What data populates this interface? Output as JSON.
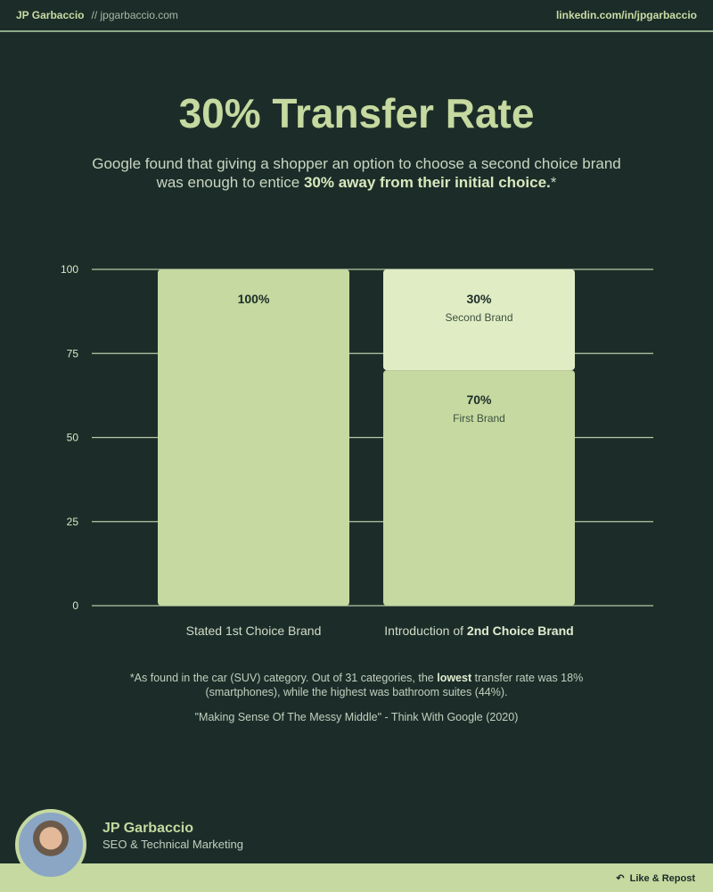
{
  "header": {
    "name": "JP Garbaccio",
    "site": "// jpgarbaccio.com",
    "linkedin": "linkedin.com/in/jpgarbaccio"
  },
  "title": "30% Transfer Rate",
  "description": {
    "text": "Google found that giving a shopper an option to choose a second choice brand was enough to entice ",
    "bold": "30% away from their initial choice.",
    "suffix": "*"
  },
  "chart_data": {
    "type": "bar",
    "stacked": true,
    "categories": [
      "Stated 1st Choice Brand",
      "Introduction of 2nd Choice Brand"
    ],
    "category_label_parts": [
      {
        "plain": "Stated 1st Choice Brand",
        "bold": ""
      },
      {
        "plain": "Introduction of ",
        "bold": "2nd Choice Brand"
      }
    ],
    "series": [
      {
        "name": "First Brand",
        "values": [
          100,
          70
        ],
        "labels": [
          "100%",
          "70%"
        ],
        "sublabels": [
          "",
          "First Brand"
        ],
        "color": "#c5d9a0"
      },
      {
        "name": "Second Brand",
        "values": [
          0,
          30
        ],
        "labels": [
          "",
          "30%"
        ],
        "sublabels": [
          "",
          "Second Brand"
        ],
        "color": "#e0ecc4"
      }
    ],
    "ylim": [
      0,
      100
    ],
    "yticks": [
      0,
      25,
      50,
      75,
      100
    ],
    "grid": true
  },
  "notes": {
    "line1a": "*As found in the car (SUV) category. Out of 31 categories, the ",
    "line1b": "lowest",
    "line1c": " transfer rate was 18% (smartphones), while the highest was bathroom suites (44%).",
    "source": "\"Making Sense Of The Messy Middle\" - Think With Google (2020)"
  },
  "footer": {
    "name": "JP Garbaccio",
    "role": "SEO & Technical Marketing",
    "cta": "Like & Repost"
  }
}
